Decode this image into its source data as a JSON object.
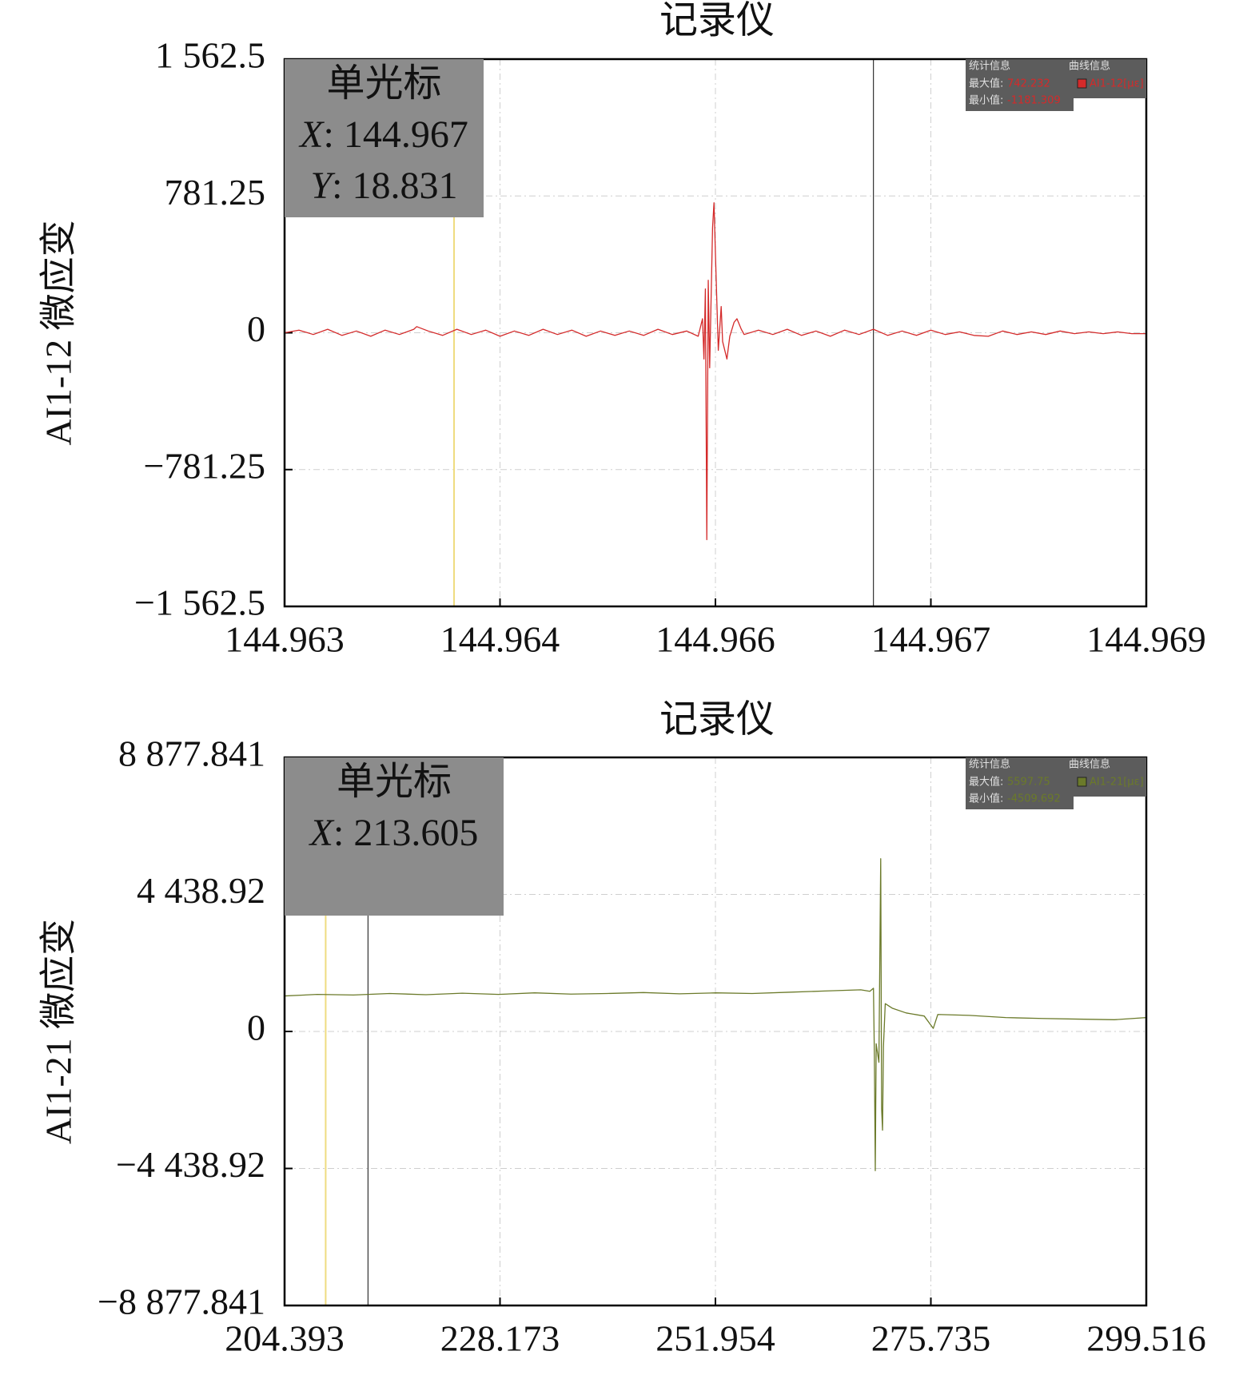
{
  "chart_data": [
    {
      "type": "line",
      "title": "记录仪",
      "ylabel": "AI1-12 微应变",
      "xlim": [
        144.9629,
        144.9689
      ],
      "xticks": [
        {
          "value": 144.9629,
          "label": "144.963"
        },
        {
          "value": 144.9644,
          "label": "144.964"
        },
        {
          "value": 144.9659,
          "label": "144.966"
        },
        {
          "value": 144.9674,
          "label": "144.967"
        },
        {
          "value": 144.9689,
          "label": "144.969"
        }
      ],
      "ylim": [
        -1562.5,
        1562.5
      ],
      "yticks": [
        {
          "value": -1562.5,
          "label": "−1 562.5"
        },
        {
          "value": -781.25,
          "label": "−781.25"
        },
        0,
        781.25,
        {
          "value": 1562.5,
          "label": "1 562.5"
        }
      ],
      "grid": true,
      "x": [
        144.9629,
        144.963,
        144.9631,
        144.9632,
        144.9633,
        144.9634,
        144.9635,
        144.9636,
        144.9637,
        144.9638,
        144.96382,
        144.9639,
        144.964,
        144.9641,
        144.9642,
        144.9643,
        144.9644,
        144.9645,
        144.9646,
        144.9647,
        144.9648,
        144.9649,
        144.965,
        144.9651,
        144.9652,
        144.9653,
        144.9654,
        144.9655,
        144.9656,
        144.9657,
        144.96578,
        144.96581,
        144.96582,
        144.96583,
        144.96584,
        144.96585,
        144.96586,
        144.96588,
        144.96589,
        144.9659,
        144.96592,
        144.96594,
        144.96595,
        144.96598,
        144.966,
        144.96603,
        144.96605,
        144.96608,
        144.9661,
        144.9662,
        144.9663,
        144.9664,
        144.9665,
        144.9666,
        144.9667,
        144.9668,
        144.9669,
        144.967,
        144.9671,
        144.9672,
        144.9673,
        144.9674,
        144.9675,
        144.9676,
        144.9677,
        144.9678,
        144.9679,
        144.968,
        144.9681,
        144.9682,
        144.9683,
        144.9684,
        144.9685,
        144.9686,
        144.9687,
        144.9688,
        144.9689
      ],
      "series": [
        {
          "name": "AI1-12[με]",
          "color": "#d42a2a",
          "values": [
            0,
            15,
            -10,
            20,
            -15,
            10,
            -20,
            15,
            -10,
            20,
            35,
            10,
            -15,
            20,
            -10,
            15,
            -20,
            10,
            -15,
            20,
            -10,
            15,
            -20,
            10,
            -15,
            10,
            -15,
            20,
            -10,
            10,
            -20,
            80,
            -150,
            250,
            -1181.309,
            300,
            -200,
            600,
            742.232,
            450,
            -100,
            150,
            -50,
            -150,
            -20,
            60,
            80,
            20,
            -10,
            15,
            -10,
            20,
            -15,
            10,
            -20,
            15,
            -10,
            20,
            -15,
            10,
            -15,
            15,
            -10,
            5,
            -15,
            -20,
            10,
            -10,
            5,
            -10,
            10,
            -5,
            5,
            -5,
            5,
            -5,
            -5
          ]
        }
      ],
      "reference_x": 144.96408,
      "cursor": {
        "title": "单光标",
        "x_name": "X",
        "y_name": "Y",
        "separator": ": ",
        "x": 144.967,
        "y": 18.831
      },
      "stats": {
        "header": "统计信息",
        "curve_header": "曲线信息",
        "max_label": "最大值:",
        "max": 742.232,
        "min_label": "最小值:",
        "min": -1181.309
      }
    },
    {
      "type": "line",
      "title": "记录仪",
      "ylabel": "AI1-21 微应变",
      "xlim": [
        204.393,
        299.516
      ],
      "xticks": [
        204.393,
        228.173,
        251.954,
        275.735,
        299.516
      ],
      "ylim": [
        -8877.841,
        8877.841
      ],
      "yticks": [
        {
          "value": -8877.841,
          "label": "−8 877.841"
        },
        {
          "value": -4438.92,
          "label": "−4 438.92"
        },
        0,
        {
          "value": 4438.92,
          "label": "4 438.92"
        },
        {
          "value": 8877.841,
          "label": "8 877.841"
        }
      ],
      "grid": true,
      "x": [
        204.393,
        208,
        212,
        216,
        220,
        224,
        228,
        232,
        236,
        240,
        244,
        248,
        252,
        256,
        260,
        264,
        268,
        269,
        269.4,
        269.5,
        269.6,
        269.7,
        270,
        270.2,
        270.3,
        270.4,
        270.5,
        270.7,
        271.5,
        273,
        275,
        276,
        276.5,
        280,
        284,
        288,
        292,
        296,
        299.516
      ],
      "series": [
        {
          "name": "AI1-21[με]",
          "color": "#6b7a2a",
          "values": [
            1150,
            1200,
            1180,
            1230,
            1190,
            1240,
            1200,
            1250,
            1210,
            1230,
            1260,
            1220,
            1250,
            1230,
            1270,
            1310,
            1350,
            1300,
            1400,
            -800,
            -4509.692,
            -400,
            -1000,
            5597.75,
            -2500,
            -3200,
            -500,
            900,
            750,
            600,
            500,
            100,
            550,
            520,
            450,
            420,
            400,
            380,
            450
          ]
        }
      ],
      "reference_x": 208.93,
      "cursor": {
        "title": "单光标",
        "x_name": "X",
        "separator": ": ",
        "x": 213.605
      },
      "stats": {
        "header": "统计信息",
        "curve_header": "曲线信息",
        "max_label": "最大值:",
        "max": 5597.75,
        "min_label": "最小值:",
        "min": -4509.692
      }
    }
  ]
}
